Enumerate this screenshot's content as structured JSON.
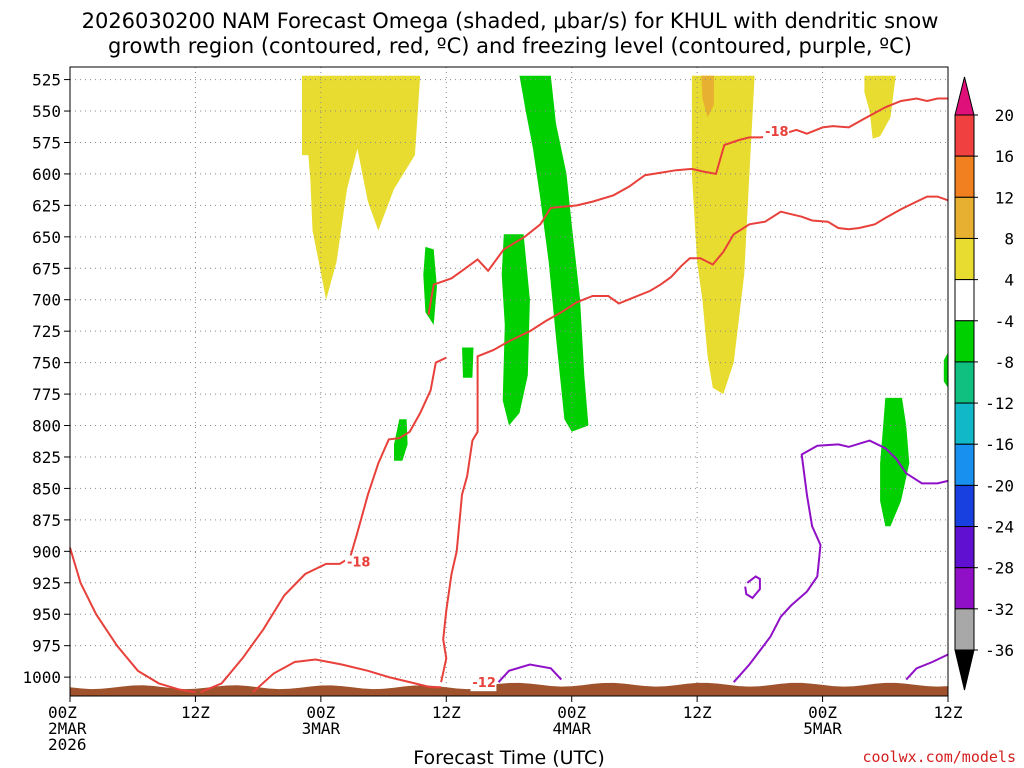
{
  "chart_data": {
    "type": "heatmap",
    "title_lines": [
      "2026030200 NAM Forecast Omega (shaded, μbar/s) for KHUL with dendritic snow",
      "growth region (contoured, red, ºC) and freezing level (contoured, purple, ºC)"
    ],
    "xlabel": "Forecast Time (UTC)",
    "credit": "coolwx.com/models",
    "x_hours_range": [
      0,
      84
    ],
    "y_range_hpa": [
      1015,
      515
    ],
    "y_ticks": [
      525,
      550,
      575,
      600,
      625,
      650,
      675,
      700,
      725,
      750,
      775,
      800,
      825,
      850,
      875,
      900,
      925,
      950,
      975,
      1000
    ],
    "x_ticks": [
      {
        "hour": 0,
        "line1": "00Z",
        "line2": "2MAR",
        "line3": "2026"
      },
      {
        "hour": 12,
        "line1": "12Z",
        "line2": "",
        "line3": ""
      },
      {
        "hour": 24,
        "line1": "00Z",
        "line2": "3MAR",
        "line3": ""
      },
      {
        "hour": 36,
        "line1": "12Z",
        "line2": "",
        "line3": ""
      },
      {
        "hour": 48,
        "line1": "00Z",
        "line2": "4MAR",
        "line3": ""
      },
      {
        "hour": 60,
        "line1": "12Z",
        "line2": "",
        "line3": ""
      },
      {
        "hour": 72,
        "line1": "00Z",
        "line2": "5MAR",
        "line3": ""
      },
      {
        "hour": 84,
        "line1": "12Z",
        "line2": "",
        "line3": ""
      }
    ],
    "colorbar": {
      "labels": [
        "20",
        "16",
        "12",
        "8",
        "4",
        "-4",
        "-8",
        "-12",
        "-16",
        "-20",
        "-24",
        "-28",
        "-32",
        "-36"
      ],
      "bins": [
        {
          "lo": 16,
          "hi": 20,
          "color": "#f04040"
        },
        {
          "lo": 12,
          "hi": 16,
          "color": "#f08020"
        },
        {
          "lo": 8,
          "hi": 12,
          "color": "#e8b030"
        },
        {
          "lo": 4,
          "hi": 8,
          "color": "#e8dc30"
        },
        {
          "lo": -4,
          "hi": 4,
          "color": "#ffffff"
        },
        {
          "lo": -8,
          "hi": -4,
          "color": "#00d000"
        },
        {
          "lo": -12,
          "hi": -8,
          "color": "#10c080"
        },
        {
          "lo": -16,
          "hi": -12,
          "color": "#10b8c8"
        },
        {
          "lo": -20,
          "hi": -16,
          "color": "#1890f0"
        },
        {
          "lo": -24,
          "hi": -20,
          "color": "#1840e0"
        },
        {
          "lo": -28,
          "hi": -24,
          "color": "#6010d0"
        },
        {
          "lo": -32,
          "hi": -28,
          "color": "#9010c8"
        },
        {
          "lo": -36,
          "hi": -32,
          "color": "#a8a8a8"
        }
      ],
      "top_arrow_color": "#e0107a",
      "bottom_arrow_color": "#000000"
    },
    "omega_regions": [
      {
        "color": "#e8dc30",
        "points": [
          [
            22.2,
            522
          ],
          [
            33.5,
            522
          ],
          [
            33.0,
            585
          ],
          [
            31.0,
            612
          ],
          [
            29.5,
            645
          ],
          [
            28.5,
            622
          ],
          [
            27.5,
            580
          ],
          [
            26.5,
            612
          ],
          [
            25.5,
            670
          ],
          [
            24.5,
            700
          ],
          [
            23.8,
            670
          ],
          [
            23.2,
            645
          ],
          [
            23.0,
            605
          ],
          [
            22.8,
            585
          ],
          [
            22.2,
            585
          ]
        ]
      },
      {
        "color": "#e8dc30",
        "points": [
          [
            59.5,
            522
          ],
          [
            65.5,
            522
          ],
          [
            65.0,
            600
          ],
          [
            64.5,
            680
          ],
          [
            63.5,
            750
          ],
          [
            62.5,
            775
          ],
          [
            61.5,
            770
          ],
          [
            61.0,
            745
          ],
          [
            60.5,
            700
          ],
          [
            60.0,
            670
          ],
          [
            59.5,
            600
          ]
        ]
      },
      {
        "color": "#e8b030",
        "points": [
          [
            60.4,
            522
          ],
          [
            61.6,
            522
          ],
          [
            61.6,
            545
          ],
          [
            61.0,
            555
          ],
          [
            60.5,
            540
          ]
        ]
      },
      {
        "color": "#e8dc30",
        "points": [
          [
            76.0,
            522
          ],
          [
            79.0,
            522
          ],
          [
            78.5,
            555
          ],
          [
            77.5,
            570
          ],
          [
            76.8,
            572
          ],
          [
            76.5,
            550
          ],
          [
            76.0,
            535
          ]
        ]
      },
      {
        "color": "#00d000",
        "points": [
          [
            43.0,
            522
          ],
          [
            46.0,
            522
          ],
          [
            46.5,
            560
          ],
          [
            47.5,
            600
          ],
          [
            48.0,
            640
          ],
          [
            48.8,
            700
          ],
          [
            49.2,
            760
          ],
          [
            49.6,
            800
          ],
          [
            48.0,
            805
          ],
          [
            47.3,
            795
          ],
          [
            46.5,
            730
          ],
          [
            45.8,
            670
          ],
          [
            45.0,
            620
          ],
          [
            44.3,
            580
          ],
          [
            43.6,
            550
          ]
        ]
      },
      {
        "color": "#00d000",
        "points": [
          [
            41.5,
            648
          ],
          [
            43.4,
            648
          ],
          [
            44.0,
            700
          ],
          [
            43.8,
            760
          ],
          [
            43.0,
            790
          ],
          [
            42.0,
            800
          ],
          [
            41.4,
            780
          ],
          [
            41.6,
            720
          ],
          [
            41.3,
            680
          ]
        ]
      },
      {
        "color": "#00d000",
        "points": [
          [
            34.0,
            658
          ],
          [
            34.8,
            660
          ],
          [
            35.1,
            690
          ],
          [
            34.8,
            720
          ],
          [
            34.0,
            710
          ],
          [
            33.8,
            680
          ]
        ]
      },
      {
        "color": "#00d000",
        "points": [
          [
            31.5,
            795
          ],
          [
            32.2,
            795
          ],
          [
            32.3,
            815
          ],
          [
            31.8,
            828
          ],
          [
            31.0,
            828
          ],
          [
            31.0,
            815
          ]
        ]
      },
      {
        "color": "#00d000",
        "points": [
          [
            37.5,
            738
          ],
          [
            38.6,
            738
          ],
          [
            38.5,
            762
          ],
          [
            37.6,
            762
          ]
        ]
      },
      {
        "color": "#00d000",
        "points": [
          [
            78.0,
            778
          ],
          [
            79.6,
            778
          ],
          [
            80.0,
            800
          ],
          [
            80.3,
            830
          ],
          [
            79.5,
            860
          ],
          [
            78.5,
            880
          ],
          [
            78.0,
            880
          ],
          [
            77.5,
            860
          ],
          [
            77.5,
            830
          ],
          [
            77.8,
            800
          ]
        ]
      },
      {
        "color": "#00d000",
        "points": [
          [
            84.0,
            742
          ],
          [
            84.0,
            770
          ],
          [
            83.6,
            765
          ],
          [
            83.6,
            748
          ]
        ]
      }
    ],
    "red_contours": [
      {
        "label": "-18",
        "label_at": [
          26.5,
          912
        ],
        "points": [
          [
            36.0,
            746
          ],
          [
            35.0,
            750
          ],
          [
            34.5,
            772
          ],
          [
            33.5,
            790
          ],
          [
            32.5,
            805
          ],
          [
            31.5,
            810
          ],
          [
            30.5,
            811
          ],
          [
            29.5,
            830
          ],
          [
            28.5,
            855
          ],
          [
            27.5,
            885
          ],
          [
            26.8,
            905
          ],
          [
            25.8,
            910
          ],
          [
            24.5,
            910
          ],
          [
            22.5,
            918
          ],
          [
            20.5,
            935
          ],
          [
            18.5,
            962
          ],
          [
            16.5,
            985
          ],
          [
            14.5,
            1005
          ],
          [
            12.5,
            1012
          ]
        ]
      },
      {
        "label": "-18",
        "label_at": [
          66.5,
          570
        ],
        "points": [
          [
            34.3,
            712
          ],
          [
            34.8,
            688
          ],
          [
            36.5,
            683
          ],
          [
            37.5,
            677
          ],
          [
            39.0,
            668
          ],
          [
            40.0,
            677
          ],
          [
            41.5,
            660
          ],
          [
            43.5,
            650
          ],
          [
            45.0,
            640
          ],
          [
            46.0,
            627
          ],
          [
            48.5,
            625
          ],
          [
            50.0,
            622
          ],
          [
            52.0,
            617
          ],
          [
            53.5,
            610
          ],
          [
            55.0,
            601
          ],
          [
            56.5,
            599
          ],
          [
            58.0,
            597
          ],
          [
            59.5,
            596
          ],
          [
            60.5,
            598
          ],
          [
            61.8,
            600
          ],
          [
            62.6,
            577
          ],
          [
            64.0,
            573
          ],
          [
            65.0,
            571
          ],
          [
            66.0,
            571
          ],
          [
            67.5,
            570
          ],
          [
            69.5,
            565
          ],
          [
            70.5,
            568
          ],
          [
            72.0,
            563
          ],
          [
            73.0,
            562
          ],
          [
            74.5,
            563
          ],
          [
            76.0,
            556
          ],
          [
            78.0,
            547
          ],
          [
            79.5,
            542
          ],
          [
            81.0,
            540
          ],
          [
            82.0,
            542
          ],
          [
            83.0,
            540
          ],
          [
            84.0,
            540
          ]
        ]
      },
      {
        "label": "-12",
        "label_at": [
          38.5,
          1008
        ],
        "points": [
          [
            0,
            897
          ],
          [
            1.0,
            925
          ],
          [
            2.5,
            950
          ],
          [
            4.5,
            975
          ],
          [
            6.5,
            995
          ],
          [
            8.5,
            1005
          ],
          [
            10.5,
            1010
          ],
          [
            12.0,
            1012
          ]
        ]
      },
      {
        "label": "",
        "label_at": [
          0,
          0
        ],
        "points": [
          [
            17.5,
            1012
          ],
          [
            19.5,
            997
          ],
          [
            21.5,
            988
          ],
          [
            23.5,
            986
          ],
          [
            26.0,
            990
          ],
          [
            28.5,
            995
          ],
          [
            30.5,
            1000
          ],
          [
            33.0,
            1005
          ],
          [
            34.5,
            1008
          ],
          [
            35.5,
            1008
          ]
        ]
      },
      {
        "label": "",
        "label_at": [
          0,
          0
        ],
        "points": [
          [
            35.5,
            1004
          ],
          [
            36.0,
            985
          ],
          [
            35.7,
            970
          ],
          [
            36.0,
            947
          ],
          [
            36.5,
            918
          ],
          [
            37.0,
            900
          ],
          [
            37.5,
            855
          ],
          [
            38.0,
            840
          ],
          [
            38.5,
            812
          ],
          [
            39.0,
            805
          ],
          [
            39.0,
            745
          ],
          [
            40.5,
            740
          ],
          [
            42.0,
            733
          ],
          [
            44.0,
            725
          ],
          [
            45.5,
            717
          ],
          [
            47.0,
            710
          ],
          [
            48.5,
            702
          ],
          [
            50.0,
            697
          ],
          [
            51.5,
            697
          ],
          [
            52.5,
            703
          ],
          [
            54.0,
            698
          ],
          [
            55.5,
            693
          ],
          [
            56.5,
            688
          ],
          [
            57.5,
            682
          ],
          [
            58.5,
            673
          ],
          [
            59.3,
            667
          ],
          [
            60.3,
            667
          ],
          [
            61.5,
            672
          ],
          [
            62.5,
            662
          ],
          [
            63.5,
            648
          ],
          [
            65.0,
            640
          ],
          [
            66.5,
            638
          ],
          [
            68.0,
            630
          ],
          [
            69.0,
            632
          ],
          [
            70.0,
            634
          ],
          [
            71.0,
            637
          ],
          [
            72.5,
            638
          ],
          [
            73.5,
            643
          ],
          [
            74.5,
            644
          ],
          [
            75.5,
            643
          ],
          [
            77.0,
            640
          ],
          [
            78.0,
            635
          ],
          [
            79.5,
            628
          ],
          [
            81.0,
            622
          ],
          [
            82.0,
            618
          ],
          [
            83.0,
            618
          ],
          [
            84.0,
            621
          ]
        ]
      }
    ],
    "purple_contours": [
      {
        "points": [
          [
            41.0,
            1004
          ],
          [
            42.0,
            995
          ],
          [
            44.0,
            990
          ],
          [
            46.0,
            993
          ],
          [
            47.0,
            1002
          ]
        ]
      },
      {
        "points": [
          [
            63.5,
            1004
          ],
          [
            65.0,
            990
          ],
          [
            67.0,
            968
          ],
          [
            68.0,
            952
          ],
          [
            69.0,
            943
          ],
          [
            70.5,
            932
          ],
          [
            71.5,
            920
          ],
          [
            71.8,
            895
          ],
          [
            71.0,
            880
          ],
          [
            70.5,
            855
          ],
          [
            70.0,
            823
          ],
          [
            71.5,
            816
          ],
          [
            73.5,
            815
          ],
          [
            74.5,
            817
          ],
          [
            76.5,
            812
          ],
          [
            78.0,
            818
          ],
          [
            79.0,
            826
          ],
          [
            80.0,
            838
          ],
          [
            81.5,
            846
          ],
          [
            83.0,
            846
          ],
          [
            84.0,
            844
          ]
        ]
      },
      {
        "points": [
          [
            64.8,
            925
          ],
          [
            65.6,
            920
          ],
          [
            66.0,
            922
          ],
          [
            66.0,
            930
          ],
          [
            65.3,
            937
          ],
          [
            64.7,
            934
          ],
          [
            64.6,
            928
          ]
        ]
      },
      {
        "points": [
          [
            80.0,
            1002
          ],
          [
            81.0,
            993
          ],
          [
            82.5,
            988
          ],
          [
            84.0,
            982
          ]
        ]
      }
    ],
    "terrain_color": "#a0522d"
  }
}
